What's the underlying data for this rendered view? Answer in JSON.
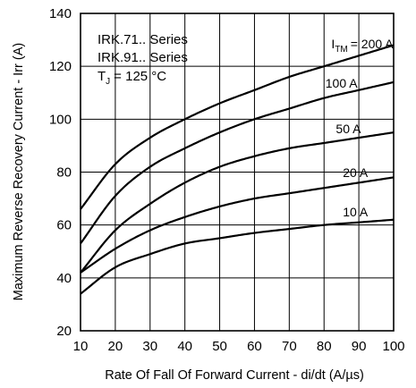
{
  "chart_data": {
    "type": "line",
    "xlabel": "Rate Of Fall Of Forward Current - di/dt (A/µs)",
    "ylabel": "Maximum Reverse Recovery Current - Irr (A)",
    "xlim": [
      10,
      100
    ],
    "ylim": [
      20,
      140
    ],
    "xticks": [
      10,
      20,
      30,
      40,
      50,
      60,
      70,
      80,
      90,
      100
    ],
    "yticks": [
      20,
      40,
      60,
      80,
      100,
      120,
      140
    ],
    "grid": true,
    "annotations": {
      "series_line_1": "IRK.71.. Series",
      "series_line_2": "IRK.91.. Series",
      "tj_prefix": "T",
      "tj_sub": "J",
      "tj_suffix": "= 125 °C",
      "itm_prefix": "I",
      "itm_sub": "TM"
    },
    "x": [
      10,
      20,
      30,
      40,
      50,
      60,
      70,
      80,
      90,
      100
    ],
    "series": [
      {
        "name": "= 200 A",
        "values": [
          66,
          83,
          93,
          100,
          106,
          111,
          116,
          120,
          124,
          128
        ]
      },
      {
        "name": "100 A",
        "values": [
          53,
          71,
          82,
          89,
          95,
          100,
          104,
          108,
          111,
          114
        ]
      },
      {
        "name": "50 A",
        "values": [
          42,
          58,
          68,
          76,
          82,
          86,
          89,
          91,
          93,
          95
        ]
      },
      {
        "name": "20 A",
        "values": [
          42,
          51,
          58,
          63,
          67,
          70,
          72,
          74,
          76,
          78
        ]
      },
      {
        "name": "10 A",
        "values": [
          34,
          44,
          49,
          53,
          55,
          57,
          58.5,
          60,
          61,
          62
        ]
      }
    ],
    "curve_label_positions": [
      {
        "index": 0,
        "at_x": 91
      },
      {
        "index": 1,
        "at_x": 85
      },
      {
        "index": 2,
        "at_x": 87
      },
      {
        "index": 3,
        "at_x": 89
      },
      {
        "index": 4,
        "at_x": 89
      }
    ]
  }
}
